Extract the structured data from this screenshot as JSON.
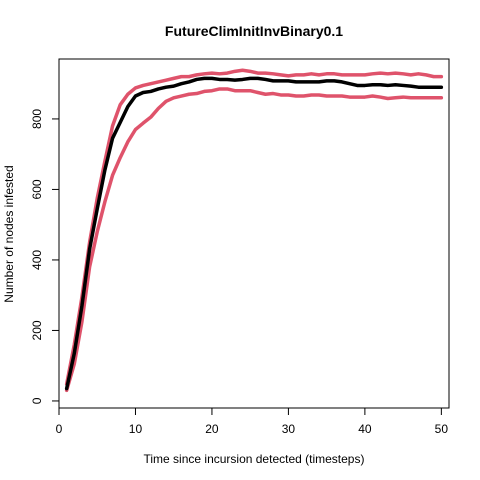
{
  "chart_data": {
    "type": "line",
    "title": "FutureClimInitInvBinary0.1",
    "xlabel": "Time since incursion detected (timesteps)",
    "ylabel": "Number of nodes infested",
    "xlim": [
      0,
      51
    ],
    "ylim": [
      -20,
      970
    ],
    "xticks": [
      0,
      10,
      20,
      30,
      40,
      50
    ],
    "yticks": [
      0,
      200,
      400,
      600,
      800
    ],
    "grid": false,
    "legend": "none",
    "x": [
      1,
      2,
      3,
      4,
      5,
      6,
      7,
      8,
      9,
      10,
      11,
      12,
      13,
      14,
      15,
      16,
      17,
      18,
      19,
      20,
      21,
      22,
      23,
      24,
      25,
      26,
      27,
      28,
      29,
      30,
      31,
      32,
      33,
      34,
      35,
      36,
      37,
      38,
      39,
      40,
      41,
      42,
      43,
      44,
      45,
      46,
      47,
      48,
      49,
      50
    ],
    "series": [
      {
        "color": "#000000",
        "values": [
          35,
          135,
          270,
          430,
          545,
          655,
          745,
          790,
          835,
          865,
          875,
          878,
          885,
          890,
          893,
          900,
          905,
          912,
          915,
          915,
          912,
          912,
          910,
          912,
          915,
          915,
          912,
          908,
          908,
          908,
          905,
          905,
          905,
          905,
          908,
          908,
          905,
          900,
          895,
          895,
          897,
          897,
          895,
          897,
          895,
          893,
          890,
          890,
          890,
          890
        ]
      },
      {
        "color": "#df536b",
        "values": [
          48,
          160,
          295,
          450,
          575,
          680,
          780,
          840,
          870,
          888,
          895,
          900,
          905,
          910,
          915,
          920,
          920,
          925,
          928,
          930,
          928,
          930,
          935,
          938,
          935,
          930,
          930,
          928,
          925,
          922,
          925,
          925,
          928,
          925,
          928,
          928,
          925,
          925,
          925,
          925,
          928,
          930,
          928,
          930,
          928,
          925,
          928,
          925,
          920,
          920
        ]
      },
      {
        "color": "#df536b",
        "values": [
          30,
          105,
          225,
          380,
          480,
          565,
          640,
          690,
          735,
          770,
          788,
          805,
          830,
          850,
          860,
          865,
          870,
          872,
          878,
          880,
          885,
          885,
          880,
          880,
          880,
          875,
          870,
          872,
          868,
          868,
          865,
          865,
          868,
          868,
          865,
          865,
          865,
          862,
          862,
          862,
          865,
          862,
          858,
          860,
          862,
          860,
          860,
          860,
          860,
          860
        ]
      }
    ]
  }
}
